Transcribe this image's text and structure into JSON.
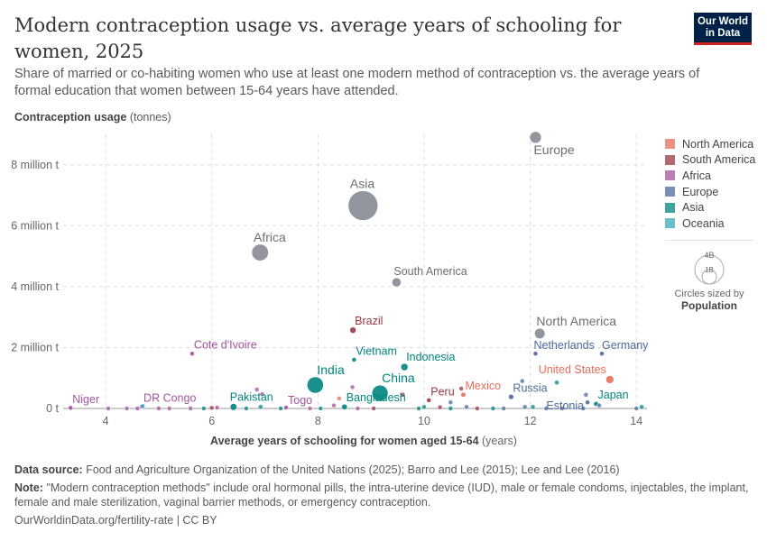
{
  "header": {
    "title": "Modern contraception usage vs. average years of schooling for women, 2025",
    "subtitle": "Share of married or co-habiting women who use at least one modern method of contraception vs. the average years of formal education that women between 15-64 years have attended.",
    "logo": "Our World in Data"
  },
  "chart_data": {
    "type": "scatter",
    "ylabel_bold": "Contraception usage",
    "ylabel_unit": "(tonnes)",
    "xlabel_bold": "Average years of schooling for women aged 15-64",
    "xlabel_unit": "(years)",
    "xlim": [
      3.2,
      14.2
    ],
    "ylim": [
      0,
      9
    ],
    "xticks": [
      {
        "v": 4,
        "label": "4"
      },
      {
        "v": 6,
        "label": "6"
      },
      {
        "v": 8,
        "label": "8"
      },
      {
        "v": 10,
        "label": "10"
      },
      {
        "v": 12,
        "label": "12"
      },
      {
        "v": 14,
        "label": "14"
      }
    ],
    "yticks": [
      {
        "v": 0,
        "label": "0 t"
      },
      {
        "v": 2,
        "label": "2 million t"
      },
      {
        "v": 4,
        "label": "4 million t"
      },
      {
        "v": 6,
        "label": "6 million t"
      },
      {
        "v": 8,
        "label": "8 million t"
      }
    ],
    "grid": true,
    "regions": [
      {
        "name": "North America",
        "color": "#e56e5a"
      },
      {
        "name": "South America",
        "color": "#993744"
      },
      {
        "name": "Africa",
        "color": "#a2559c"
      },
      {
        "name": "Europe",
        "color": "#4c6a9c"
      },
      {
        "name": "Asia",
        "color": "#00847e"
      },
      {
        "name": "Oceania",
        "color": "#38aaba"
      }
    ],
    "aggregate_color": "#858a93",
    "size_legend": {
      "large": "4B",
      "small": "1B",
      "caption": "Circles sized by",
      "variable": "Population"
    },
    "points": [
      {
        "label": "Europe",
        "x": 12.1,
        "y": 8.9,
        "region": "aggregate",
        "pop": 0.74
      },
      {
        "label": "Asia",
        "x": 8.85,
        "y": 6.66,
        "region": "aggregate",
        "pop": 4.8
      },
      {
        "label": "Africa",
        "x": 6.91,
        "y": 5.12,
        "region": "aggregate",
        "pop": 1.5
      },
      {
        "label": "South America",
        "x": 9.48,
        "y": 4.14,
        "region": "aggregate",
        "pop": 0.44
      },
      {
        "label": "North America",
        "x": 12.18,
        "y": 2.46,
        "region": "aggregate",
        "pop": 0.6
      },
      {
        "label": "Brazil",
        "x": 8.66,
        "y": 2.57,
        "region": "South America",
        "pop": 0.21
      },
      {
        "label": "Cote d'Ivoire",
        "x": 5.63,
        "y": 1.8,
        "region": "Africa",
        "pop": 0.03
      },
      {
        "label": "Vietnam",
        "x": 8.68,
        "y": 1.6,
        "region": "Asia",
        "pop": 0.1
      },
      {
        "label": "Indonesia",
        "x": 9.63,
        "y": 1.36,
        "region": "Asia",
        "pop": 0.28
      },
      {
        "label": "India",
        "x": 7.95,
        "y": 0.77,
        "region": "Asia",
        "pop": 1.45
      },
      {
        "label": "China",
        "x": 9.17,
        "y": 0.5,
        "region": "Asia",
        "pop": 1.41
      },
      {
        "label": "Netherlands",
        "x": 12.1,
        "y": 1.8,
        "region": "Europe",
        "pop": 0.018
      },
      {
        "label": "Germany",
        "x": 13.35,
        "y": 1.8,
        "region": "Europe",
        "pop": 0.084
      },
      {
        "label": "United States",
        "x": 13.5,
        "y": 0.95,
        "region": "North America",
        "pop": 0.34
      },
      {
        "label": "Russia",
        "x": 11.64,
        "y": 0.38,
        "region": "Europe",
        "pop": 0.145
      },
      {
        "label": "Estonia",
        "x": 13.08,
        "y": 0.2,
        "region": "Europe",
        "pop": 0.001
      },
      {
        "label": "Japan",
        "x": 13.24,
        "y": 0.15,
        "region": "Asia",
        "pop": 0.124
      },
      {
        "label": "Peru",
        "x": 10.09,
        "y": 0.27,
        "region": "South America",
        "pop": 0.034
      },
      {
        "label": "Mexico",
        "x": 10.74,
        "y": 0.45,
        "region": "North America",
        "pop": 0.13
      },
      {
        "label": "Bangladesh",
        "x": 8.5,
        "y": 0.05,
        "region": "Asia",
        "pop": 0.17
      },
      {
        "label": "Pakistan",
        "x": 6.41,
        "y": 0.05,
        "region": "Asia",
        "pop": 0.25
      },
      {
        "label": "Togo",
        "x": 7.4,
        "y": 0.03,
        "region": "Africa",
        "pop": 0.009
      },
      {
        "label": "DR Congo",
        "x": 4.68,
        "y": 0.06,
        "region": "Africa",
        "pop": 0.11
      },
      {
        "label": "Niger",
        "x": 3.34,
        "y": 0.02,
        "region": "Africa",
        "pop": 0.027
      },
      {
        "label": "",
        "x": 4.05,
        "y": 0.0,
        "region": "Africa",
        "pop": 0.01
      },
      {
        "label": "",
        "x": 4.4,
        "y": 0.0,
        "region": "Africa",
        "pop": 0.01
      },
      {
        "label": "",
        "x": 4.6,
        "y": 0.0,
        "region": "Africa",
        "pop": 0.01
      },
      {
        "label": "",
        "x": 4.7,
        "y": 0.08,
        "region": "Oceania",
        "pop": 0.01
      },
      {
        "label": "",
        "x": 5.0,
        "y": 0.0,
        "region": "Africa",
        "pop": 0.01
      },
      {
        "label": "",
        "x": 5.2,
        "y": 0.0,
        "region": "Africa",
        "pop": 0.01
      },
      {
        "label": "",
        "x": 5.6,
        "y": 0.0,
        "region": "Africa",
        "pop": 0.01
      },
      {
        "label": "",
        "x": 5.85,
        "y": 0.0,
        "region": "Asia",
        "pop": 0.01
      },
      {
        "label": "",
        "x": 6.0,
        "y": 0.02,
        "region": "South America",
        "pop": 0.01
      },
      {
        "label": "",
        "x": 6.1,
        "y": 0.03,
        "region": "Africa",
        "pop": 0.01
      },
      {
        "label": "",
        "x": 6.65,
        "y": 0.0,
        "region": "Asia",
        "pop": 0.01
      },
      {
        "label": "",
        "x": 6.85,
        "y": 0.62,
        "region": "Africa",
        "pop": 0.01
      },
      {
        "label": "",
        "x": 6.95,
        "y": 0.47,
        "region": "Africa",
        "pop": 0.01
      },
      {
        "label": "",
        "x": 6.92,
        "y": 0.05,
        "region": "Asia",
        "pop": 0.01
      },
      {
        "label": "",
        "x": 7.3,
        "y": 0.0,
        "region": "Asia",
        "pop": 0.01
      },
      {
        "label": "",
        "x": 7.85,
        "y": 0.0,
        "region": "Africa",
        "pop": 0.01
      },
      {
        "label": "",
        "x": 8.05,
        "y": 0.0,
        "region": "Asia",
        "pop": 0.01
      },
      {
        "label": "",
        "x": 8.3,
        "y": 0.1,
        "region": "Africa",
        "pop": 0.03
      },
      {
        "label": "",
        "x": 8.4,
        "y": 0.33,
        "region": "North America",
        "pop": 0.01
      },
      {
        "label": "",
        "x": 8.65,
        "y": 0.7,
        "region": "Africa",
        "pop": 0.01
      },
      {
        "label": "",
        "x": 8.75,
        "y": 0.0,
        "region": "Africa",
        "pop": 0.01
      },
      {
        "label": "",
        "x": 9.05,
        "y": 0.0,
        "region": "South America",
        "pop": 0.01
      },
      {
        "label": "",
        "x": 9.6,
        "y": 0.45,
        "region": "South America",
        "pop": 0.01
      },
      {
        "label": "",
        "x": 9.9,
        "y": 0.0,
        "region": "Asia",
        "pop": 0.01
      },
      {
        "label": "",
        "x": 10.0,
        "y": 0.05,
        "region": "Asia",
        "pop": 0.01
      },
      {
        "label": "",
        "x": 10.3,
        "y": 0.04,
        "region": "South America",
        "pop": 0.01
      },
      {
        "label": "",
        "x": 10.5,
        "y": 0.0,
        "region": "Asia",
        "pop": 0.01
      },
      {
        "label": "",
        "x": 10.5,
        "y": 0.2,
        "region": "Europe",
        "pop": 0.01
      },
      {
        "label": "",
        "x": 10.7,
        "y": 0.65,
        "region": "South America",
        "pop": 0.01
      },
      {
        "label": "",
        "x": 10.8,
        "y": 0.05,
        "region": "Europe",
        "pop": 0.03
      },
      {
        "label": "",
        "x": 11.0,
        "y": 0.0,
        "region": "South America",
        "pop": 0.01
      },
      {
        "label": "",
        "x": 11.3,
        "y": 0.0,
        "region": "Asia",
        "pop": 0.01
      },
      {
        "label": "",
        "x": 11.5,
        "y": 0.0,
        "region": "Europe",
        "pop": 0.01
      },
      {
        "label": "",
        "x": 11.85,
        "y": 0.9,
        "region": "Europe",
        "pop": 0.01
      },
      {
        "label": "",
        "x": 11.9,
        "y": 0.05,
        "region": "Europe",
        "pop": 0.01
      },
      {
        "label": "",
        "x": 12.05,
        "y": 0.05,
        "region": "Asia",
        "pop": 0.01
      },
      {
        "label": "",
        "x": 12.3,
        "y": 0.0,
        "region": "Europe",
        "pop": 0.01
      },
      {
        "label": "",
        "x": 12.5,
        "y": 0.85,
        "region": "Asia",
        "pop": 0.01
      },
      {
        "label": "",
        "x": 12.6,
        "y": 0.0,
        "region": "Europe",
        "pop": 0.01
      },
      {
        "label": "",
        "x": 13.0,
        "y": 0.0,
        "region": "Europe",
        "pop": 0.01
      },
      {
        "label": "",
        "x": 13.05,
        "y": 0.45,
        "region": "Europe",
        "pop": 0.01
      },
      {
        "label": "",
        "x": 13.3,
        "y": 0.1,
        "region": "Europe",
        "pop": 0.01
      },
      {
        "label": "",
        "x": 14.0,
        "y": 0.0,
        "region": "Europe",
        "pop": 0.01
      },
      {
        "label": "",
        "x": 14.1,
        "y": 0.05,
        "region": "Asia",
        "pop": 0.01
      }
    ]
  },
  "footer": {
    "source_label": "Data source:",
    "source": "Food and Agriculture Organization of the United Nations (2025); Barro and Lee (2015); Lee and Lee (2016)",
    "note_label": "Note:",
    "note": "\"Modern contraception methods\" include oral hormonal pills, the intra-uterine device (IUD), male or female condoms, injectables, the implant, female and male sterilization, vaginal barrier methods, or emergency contraception.",
    "url": "OurWorldinData.org/fertility-rate | CC BY"
  }
}
